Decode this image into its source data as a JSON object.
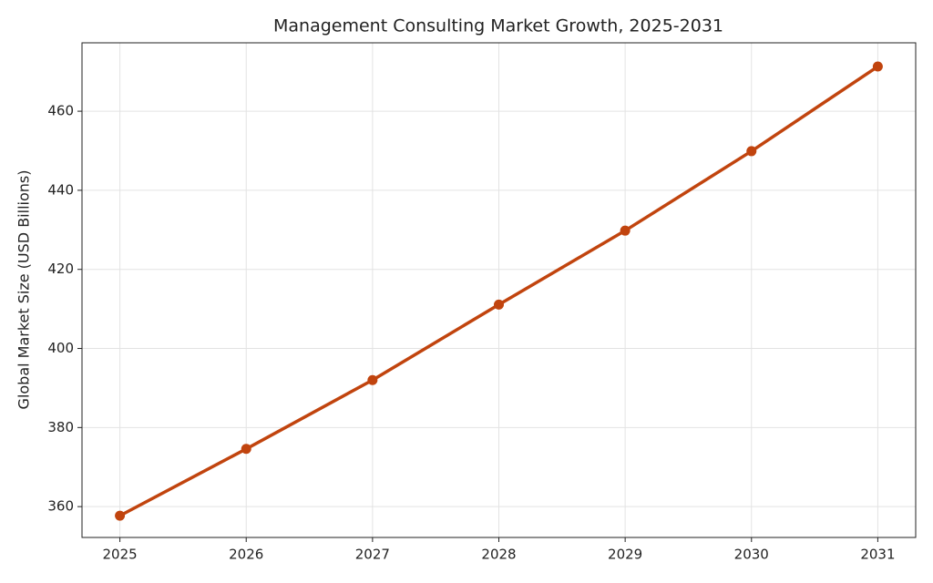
{
  "chart_data": {
    "type": "line",
    "title": "Management Consulting Market Growth, 2025-2031",
    "y_label": "Global Market Size (USD Billions)",
    "x": [
      2025,
      2026,
      2027,
      2028,
      2029,
      2030,
      2031
    ],
    "series": [
      {
        "color": "#c1440e",
        "values": [
          357.7,
          374.6,
          392.0,
          411.1,
          429.8,
          449.9,
          471.3
        ]
      }
    ],
    "xlim": [
      2024.7,
      2031.3
    ],
    "xticks": [
      2025,
      2026,
      2027,
      2028,
      2029,
      2030,
      2031
    ],
    "ylim": [
      352.2,
      477.3
    ],
    "yticks": [
      360,
      380,
      400,
      420,
      440,
      460
    ],
    "grid": true
  }
}
